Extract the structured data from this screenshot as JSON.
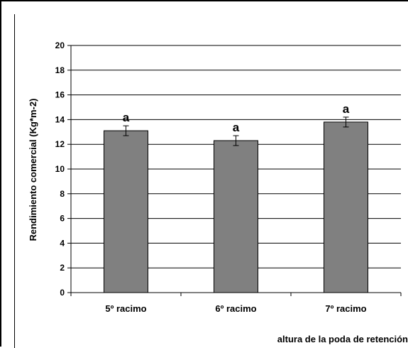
{
  "chart_data": {
    "type": "bar",
    "categories": [
      "5º racimo",
      "6º racimo",
      "7º racimo"
    ],
    "values": [
      13.1,
      12.3,
      13.8
    ],
    "errors": [
      0.4,
      0.4,
      0.4
    ],
    "significance_labels": [
      "a",
      "a",
      "a"
    ],
    "ylabel": "Rendimiento comercial (Kg*m-2)",
    "xlabel": "altura de la poda de retención",
    "ylim": [
      0,
      20
    ],
    "yticks": [
      0,
      2,
      4,
      6,
      8,
      10,
      12,
      14,
      16,
      18,
      20
    ],
    "grid": true,
    "bar_color": "#808080"
  }
}
